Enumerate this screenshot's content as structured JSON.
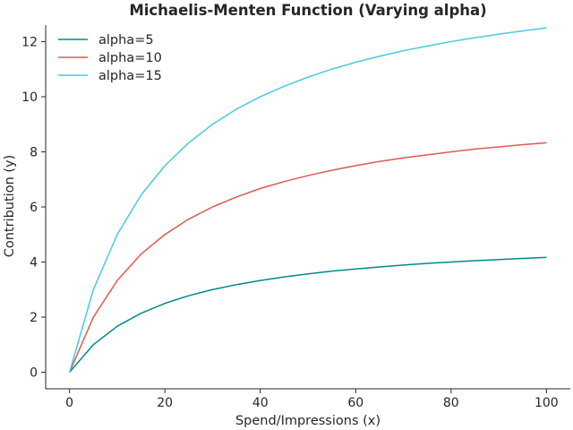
{
  "chart_data": {
    "type": "line",
    "title": "Michaelis-Menten Function (Varying alpha)",
    "xlabel": "Spend/Impressions (x)",
    "ylabel": "Contribution (y)",
    "xlim": [
      -5,
      105
    ],
    "ylim": [
      -0.6,
      12.6
    ],
    "xticks": [
      0,
      20,
      40,
      60,
      80,
      100
    ],
    "yticks": [
      0,
      2,
      4,
      6,
      8,
      10,
      12
    ],
    "grid": false,
    "legend_position": "top-left",
    "x": [
      0,
      5,
      10,
      15,
      20,
      25,
      30,
      35,
      40,
      45,
      50,
      55,
      60,
      65,
      70,
      75,
      80,
      85,
      90,
      95,
      100
    ],
    "series": [
      {
        "name": "alpha=5",
        "color": "#008b8b",
        "values": [
          0,
          1.0,
          1.67,
          2.14,
          2.5,
          2.78,
          3.0,
          3.18,
          3.33,
          3.46,
          3.57,
          3.67,
          3.75,
          3.82,
          3.89,
          3.95,
          4.0,
          4.05,
          4.09,
          4.13,
          4.17
        ]
      },
      {
        "name": "alpha=10",
        "color": "#e05a4f",
        "values": [
          0,
          2.0,
          3.33,
          4.29,
          5.0,
          5.56,
          6.0,
          6.36,
          6.67,
          6.92,
          7.14,
          7.33,
          7.5,
          7.65,
          7.78,
          7.89,
          8.0,
          8.1,
          8.18,
          8.26,
          8.33
        ]
      },
      {
        "name": "alpha=15",
        "color": "#48cbe0",
        "values": [
          0,
          3.0,
          5.0,
          6.43,
          7.5,
          8.33,
          9.0,
          9.55,
          10.0,
          10.38,
          10.71,
          11.0,
          11.25,
          11.47,
          11.67,
          11.84,
          12.0,
          12.14,
          12.27,
          12.39,
          12.5
        ]
      }
    ]
  }
}
